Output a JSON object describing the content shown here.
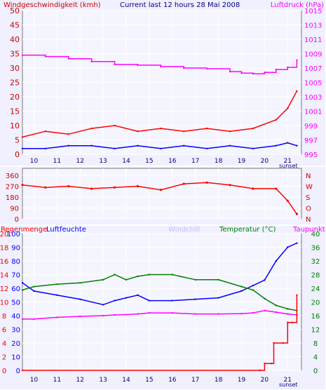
{
  "chart_data": [
    {
      "type": "line",
      "title": "Current last 12 hours 28 Mai 2008",
      "left_axis_title": "Windgeschwindigkeit (kmh)",
      "right_axis_title": "Luftdruck (hPa)",
      "x_ticks": [
        "10",
        "11",
        "12",
        "13",
        "14",
        "15",
        "16",
        "17",
        "18",
        "19",
        "20",
        "21"
      ],
      "x_suffix": "sunset",
      "left_ticks": [
        "0",
        "5",
        "10",
        "15",
        "20",
        "25",
        "30",
        "35",
        "40",
        "45",
        "50"
      ],
      "right_ticks": [
        "995",
        "997",
        "999",
        "1001",
        "1003",
        "1005",
        "1007",
        "1009",
        "1011",
        "1013",
        "1015"
      ],
      "ylim_left": [
        0,
        50
      ],
      "ylim_right": [
        995,
        1015
      ],
      "series": [
        {
          "color": "#ff00ff",
          "axis": "right",
          "x": [
            9.5,
            10.5,
            11.5,
            12.5,
            13.5,
            14.5,
            15.5,
            16.5,
            17.5,
            18.5,
            19.0,
            19.5,
            20.0,
            20.5,
            21.0,
            21.4
          ],
          "values": [
            1008.8,
            1008.6,
            1008.3,
            1007.9,
            1007.5,
            1007.4,
            1007.2,
            1007.0,
            1006.9,
            1006.5,
            1006.3,
            1006.2,
            1006.4,
            1006.8,
            1007.1,
            1008.1
          ]
        },
        {
          "color": "#ff0000",
          "axis": "left",
          "x": [
            9.5,
            10.5,
            11.5,
            12.5,
            13.5,
            14.5,
            15.5,
            16.5,
            17.5,
            18.5,
            19.5,
            20.5,
            21.0,
            21.4
          ],
          "values": [
            6,
            8,
            7,
            9,
            10,
            8,
            9,
            8,
            9,
            8,
            9,
            12,
            16,
            22
          ]
        },
        {
          "color": "#0000ff",
          "axis": "left",
          "x": [
            9.5,
            10.5,
            11.5,
            12.5,
            13.5,
            14.5,
            15.5,
            16.5,
            17.5,
            18.5,
            19.5,
            20.5,
            21.0,
            21.4
          ],
          "values": [
            2,
            2,
            3,
            3,
            2,
            3,
            2,
            3,
            2,
            3,
            2,
            3,
            4,
            3
          ]
        }
      ]
    },
    {
      "type": "scatter",
      "left_ticks": [
        "360",
        "270",
        "180",
        "90",
        "0"
      ],
      "right_ticks": [
        "N",
        "W",
        "S",
        "O",
        "N"
      ],
      "ylim": [
        0,
        360
      ],
      "series": [
        {
          "color": "#ff0000",
          "x": [
            9.5,
            10.5,
            11.5,
            12.5,
            13.5,
            14.5,
            15.5,
            16.5,
            17.5,
            18.5,
            19.5,
            20.5,
            21.0,
            21.4
          ],
          "values": [
            280,
            260,
            270,
            250,
            260,
            270,
            240,
            290,
            300,
            280,
            250,
            250,
            150,
            40
          ]
        }
      ]
    },
    {
      "type": "line",
      "labels": [
        "Regenmenge",
        "Luftfeuchte",
        "Windchill",
        "Temperatur (°C)",
        "Taupunkt"
      ],
      "label_colors": [
        "#ff0000",
        "#0000ff",
        "#c0c0ff",
        "#008000",
        "#ff00ff"
      ],
      "left_outer_ticks": [
        "0",
        "2",
        "4",
        "6",
        "8",
        "10",
        "12",
        "14",
        "16",
        "18",
        "20"
      ],
      "left_inner_ticks": [
        "0",
        "10",
        "20",
        "30",
        "40",
        "50",
        "60",
        "70",
        "80",
        "90",
        "100"
      ],
      "right_ticks": [
        "0",
        "4",
        "8",
        "12",
        "16",
        "20",
        "24",
        "28",
        "32",
        "36",
        "40"
      ],
      "ylim_left": [
        0,
        100
      ],
      "ylim_right": [
        0,
        40
      ],
      "series": [
        {
          "name": "Luftfeuchte",
          "color": "#0000ff",
          "axis": "left",
          "x": [
            9.5,
            10.0,
            11.0,
            12.0,
            13.0,
            13.5,
            14.0,
            14.5,
            15.0,
            16.0,
            17.0,
            18.0,
            19.0,
            19.5,
            20.0,
            20.5,
            21.0,
            21.4
          ],
          "values": [
            64,
            58,
            55,
            52,
            48,
            51,
            53,
            55,
            51,
            51,
            52,
            53,
            58,
            62,
            66,
            80,
            90,
            93
          ]
        },
        {
          "name": "Temperatur (°C)",
          "color": "#008000",
          "axis": "right",
          "x": [
            9.5,
            10.0,
            11.0,
            12.0,
            13.0,
            13.5,
            14.0,
            14.5,
            15.0,
            16.0,
            17.0,
            18.0,
            19.0,
            19.5,
            20.0,
            20.5,
            21.0,
            21.4
          ],
          "values": [
            23.5,
            24.5,
            25.2,
            25.6,
            26.5,
            28.0,
            26.5,
            27.5,
            28.0,
            28.0,
            26.5,
            26.5,
            24.5,
            23.5,
            21.0,
            19.0,
            18.0,
            17.5
          ]
        },
        {
          "name": "Taupunkt",
          "color": "#ff00ff",
          "axis": "right",
          "x": [
            9.5,
            10.0,
            11.0,
            12.0,
            13.0,
            13.5,
            14.0,
            14.5,
            15.0,
            16.0,
            17.0,
            18.0,
            19.0,
            19.5,
            20.0,
            20.5,
            21.0,
            21.4
          ],
          "values": [
            15.0,
            15.0,
            15.5,
            15.8,
            16.0,
            16.2,
            16.3,
            16.5,
            16.8,
            16.8,
            16.5,
            16.5,
            16.6,
            16.8,
            17.5,
            17.0,
            16.5,
            16.2
          ]
        },
        {
          "name": "Regenmenge",
          "color": "#ff0000",
          "axis": "left_outer",
          "ylim": [
            0,
            20
          ],
          "x": [
            9.5,
            19.8,
            20.0,
            20.3,
            20.4,
            20.8,
            21.0,
            21.2,
            21.4
          ],
          "values": [
            0,
            0,
            1,
            1,
            4,
            4,
            7,
            7,
            11
          ]
        }
      ]
    }
  ]
}
